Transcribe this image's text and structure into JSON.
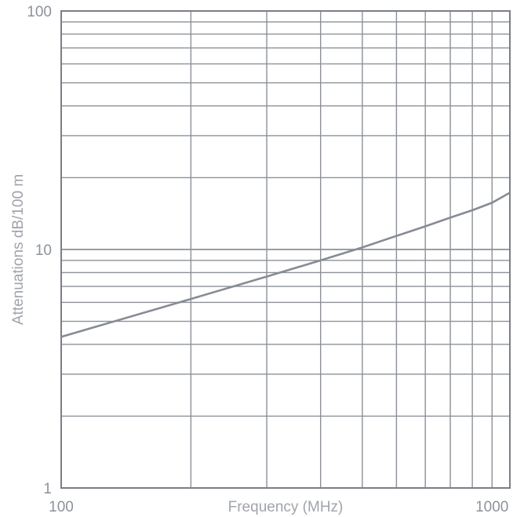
{
  "chart_data": {
    "type": "line",
    "title": "",
    "xlabel": "Frequency (MHz)",
    "ylabel": "Attenuations dB/100 m",
    "x_scale": "log",
    "y_scale": "log",
    "xlim": [
      100,
      1100
    ],
    "ylim": [
      1,
      100
    ],
    "x_ticks": [
      100,
      1000
    ],
    "x_tick_labels": [
      "100",
      "1000"
    ],
    "y_ticks": [
      1,
      10,
      100
    ],
    "y_tick_labels": [
      "1",
      "10",
      "100"
    ],
    "grid": true,
    "legend": "none",
    "colors": {
      "line": "#878b93",
      "grid": "#8c9097",
      "text": "#8e9299"
    },
    "series": [
      {
        "x": [
          100,
          200,
          300,
          400,
          500,
          600,
          700,
          800,
          900,
          1000,
          1100
        ],
        "y": [
          4.3,
          6.2,
          7.7,
          9.0,
          10.2,
          11.4,
          12.5,
          13.6,
          14.6,
          15.7,
          17.3
        ]
      }
    ]
  }
}
